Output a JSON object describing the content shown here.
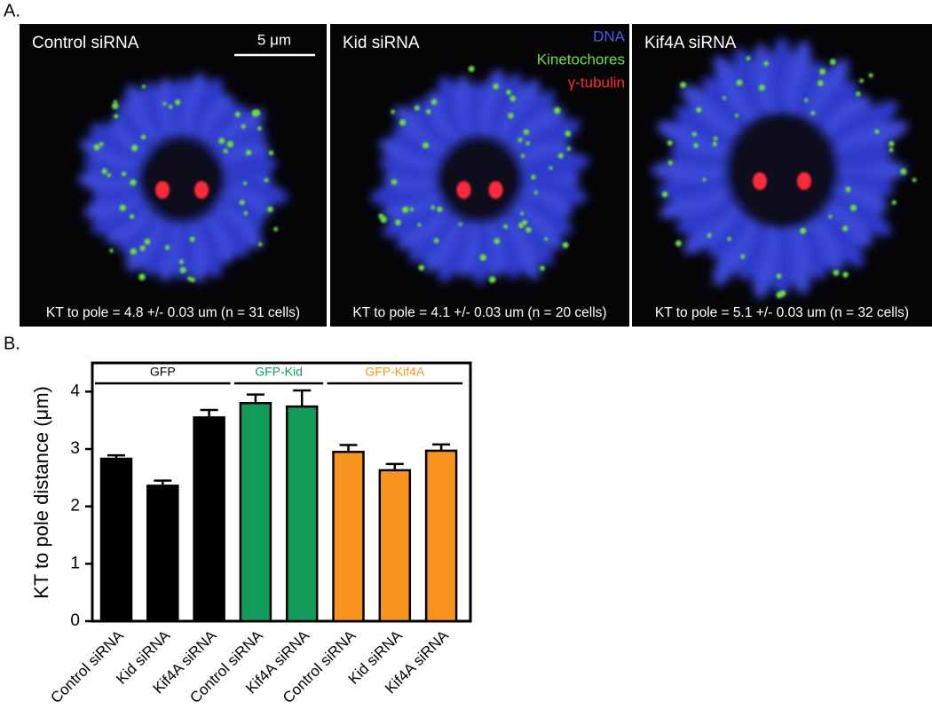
{
  "figure": {
    "panel_a": {
      "label": "A.",
      "scale_bar": "5 μm",
      "legend": [
        {
          "name": "DNA",
          "color": "#4b5ee6"
        },
        {
          "name": "Kinetochores",
          "color": "#6be03c"
        },
        {
          "name": "γ-tubulin",
          "color": "#ff2a2a"
        }
      ],
      "panels": [
        {
          "title": "Control siRNA",
          "caption": "KT to pole = 4.8 +/- 0.03 um (n = 31 cells)"
        },
        {
          "title": "Kid siRNA",
          "caption": "KT to pole = 4.1 +/- 0.03 um (n = 20 cells)"
        },
        {
          "title": "Kif4A siRNA",
          "caption": "KT to pole = 5.1 +/- 0.03 um (n = 32 cells)"
        }
      ]
    },
    "panel_b_label": "B."
  },
  "chart_data": {
    "type": "bar",
    "y_label": "KT to pole distance (μm)",
    "ylim": [
      0,
      4.5
    ],
    "yticks": [
      0,
      1,
      2,
      3,
      4
    ],
    "series": [
      {
        "name": "GFP",
        "color": "#000000",
        "label_color": "#000000",
        "categories": [
          "Control siRNA",
          "Kid siRNA",
          "Kif4A siRNA"
        ],
        "values": [
          2.83,
          2.36,
          3.55
        ],
        "errors": [
          0.06,
          0.09,
          0.13
        ]
      },
      {
        "name": "GFP-Kid",
        "color": "#129a5a",
        "label_color": "#129a5a",
        "categories": [
          "Control siRNA",
          "Kif4A siRNA"
        ],
        "values": [
          3.8,
          3.74
        ],
        "errors": [
          0.15,
          0.28
        ]
      },
      {
        "name": "GFP-Kif4A",
        "color": "#f7941d",
        "label_color": "#f7941d",
        "categories": [
          "Control siRNA",
          "Kid siRNA",
          "Kif4A siRNA"
        ],
        "values": [
          2.95,
          2.63,
          2.97
        ],
        "errors": [
          0.12,
          0.11,
          0.11
        ]
      }
    ]
  }
}
